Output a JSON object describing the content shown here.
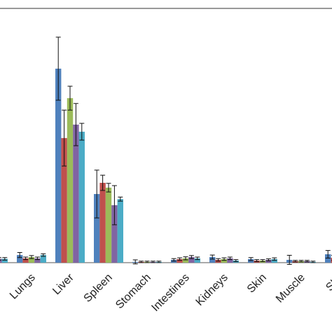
{
  "chart_data": {
    "type": "bar",
    "categories": [
      null,
      "Lungs",
      "Liver",
      "Spleen",
      "Stomach",
      "Intestines",
      "Kidneys",
      "Skin",
      "Muscle",
      "Sku"
    ],
    "ylim": [
      0,
      100
    ],
    "series": [
      {
        "color": "#4f81bd",
        "values": [
          1.2,
          3.0,
          76.3,
          27.0,
          0.3,
          1.1,
          2.2,
          1.4,
          1.1,
          3.3
        ],
        "errors": [
          0.6,
          1.0,
          12.4,
          9.4,
          0.8,
          0.5,
          0.8,
          0.6,
          1.8,
          1.5
        ]
      },
      {
        "color": "#c0504d",
        "values": [
          1.0,
          1.7,
          49.0,
          31.4,
          0.3,
          1.4,
          1.1,
          0.8,
          0.6,
          1.9
        ],
        "errors": [
          0.5,
          0.5,
          11.0,
          3.0,
          0.3,
          0.5,
          0.5,
          0.4,
          0.3,
          1.0
        ]
      },
      {
        "color": "#9bbb59",
        "values": [
          1.0,
          2.2,
          64.7,
          29.5,
          0.3,
          1.7,
          1.4,
          0.8,
          0.6,
          2.0
        ],
        "errors": [
          0.4,
          0.6,
          4.7,
          1.7,
          0.3,
          0.6,
          0.5,
          0.4,
          0.3,
          0.8
        ]
      },
      {
        "color": "#8064a2",
        "values": [
          1.5,
          1.7,
          54.3,
          22.6,
          0.3,
          2.2,
          1.7,
          1.1,
          0.6,
          2.0
        ],
        "errors": [
          0.5,
          0.5,
          8.3,
          7.7,
          0.3,
          0.6,
          0.5,
          0.4,
          0.3,
          0.8
        ]
      },
      {
        "color": "#4bacc6",
        "values": [
          1.5,
          3.0,
          51.5,
          25.0,
          0.3,
          1.7,
          0.8,
          1.4,
          0.3,
          2.0
        ],
        "errors": [
          0.5,
          0.5,
          3.3,
          0.8,
          0.3,
          0.5,
          0.4,
          0.5,
          0.3,
          0.8
        ]
      }
    ]
  }
}
